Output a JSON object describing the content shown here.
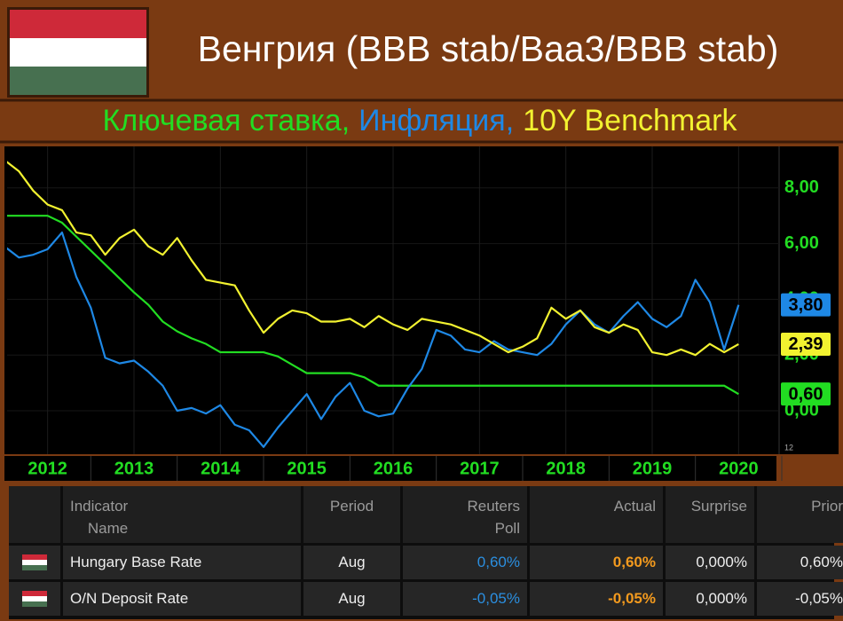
{
  "header": {
    "title": "Венгрия (BBB stab/Baa3/BBB stab)"
  },
  "chart_data": {
    "type": "line",
    "subtitle": [
      "Ключевая ставка,",
      "Инфляция,",
      "10Y Benchmark"
    ],
    "x": [
      2012,
      2012.167,
      2012.333,
      2012.5,
      2012.667,
      2012.833,
      2013,
      2013.167,
      2013.333,
      2013.5,
      2013.667,
      2013.833,
      2014,
      2014.167,
      2014.333,
      2014.5,
      2014.667,
      2014.833,
      2015,
      2015.167,
      2015.333,
      2015.5,
      2015.667,
      2015.833,
      2016,
      2016.167,
      2016.333,
      2016.5,
      2016.667,
      2016.833,
      2017,
      2017.167,
      2017.333,
      2017.5,
      2017.667,
      2017.833,
      2018,
      2018.167,
      2018.333,
      2018.5,
      2018.667,
      2018.833,
      2019,
      2019.167,
      2019.333,
      2019.5,
      2019.667,
      2019.833,
      2020,
      2020.167,
      2020.333,
      2020.5
    ],
    "xlim": [
      2012,
      2021
    ],
    "xticks": [
      {
        "value": 2012.5,
        "label": "2012"
      },
      {
        "value": 2013.5,
        "label": "2013"
      },
      {
        "value": 2014.5,
        "label": "2014"
      },
      {
        "value": 2015.5,
        "label": "2015"
      },
      {
        "value": 2016.5,
        "label": "2016"
      },
      {
        "value": 2017.5,
        "label": "2017"
      },
      {
        "value": 2018.5,
        "label": "2018"
      },
      {
        "value": 2019.5,
        "label": "2019"
      },
      {
        "value": 2020.5,
        "label": "2020"
      }
    ],
    "ylim": [
      -1.56,
      9.49
    ],
    "yticks": [
      {
        "value": 0,
        "label": "0,00"
      },
      {
        "value": 2,
        "label": "2,00"
      },
      {
        "value": 4,
        "label": "4,00"
      },
      {
        "value": 6,
        "label": "6,00"
      },
      {
        "value": 8,
        "label": "8,00"
      }
    ],
    "grid": true,
    "corner_note": "12",
    "series": [
      {
        "color": "#22dd22",
        "values": [
          7.0,
          7.0,
          7.0,
          7.0,
          6.75,
          6.25,
          5.75,
          5.25,
          4.75,
          4.25,
          3.8,
          3.2,
          2.85,
          2.6,
          2.4,
          2.1,
          2.1,
          2.1,
          2.1,
          1.95,
          1.65,
          1.35,
          1.35,
          1.35,
          1.35,
          1.2,
          0.9,
          0.9,
          0.9,
          0.9,
          0.9,
          0.9,
          0.9,
          0.9,
          0.9,
          0.9,
          0.9,
          0.9,
          0.9,
          0.9,
          0.9,
          0.9,
          0.9,
          0.9,
          0.9,
          0.9,
          0.9,
          0.9,
          0.9,
          0.9,
          0.9,
          0.6
        ],
        "value_labels": [
          null,
          null,
          null,
          null,
          null,
          null,
          null,
          null,
          null,
          null,
          null,
          null,
          null,
          null,
          null,
          null,
          null,
          null,
          null,
          null,
          null,
          null,
          null,
          null,
          null,
          null,
          null,
          null,
          null,
          null,
          null,
          null,
          null,
          null,
          null,
          null,
          null,
          null,
          null,
          null,
          null,
          null,
          null,
          null,
          null,
          null,
          null,
          null,
          null,
          null,
          null,
          "0,60"
        ]
      },
      {
        "color": "#1e88e5",
        "values": [
          5.9,
          5.5,
          5.6,
          5.8,
          6.4,
          4.8,
          3.7,
          1.9,
          1.7,
          1.8,
          1.4,
          0.9,
          0.0,
          0.1,
          -0.1,
          0.2,
          -0.5,
          -0.7,
          -1.3,
          -0.6,
          0.0,
          0.6,
          -0.3,
          0.5,
          1.0,
          0.0,
          -0.2,
          -0.1,
          0.8,
          1.5,
          2.9,
          2.7,
          2.2,
          2.1,
          2.5,
          2.2,
          2.1,
          2.0,
          2.4,
          3.1,
          3.6,
          3.1,
          2.8,
          3.4,
          3.9,
          3.3,
          3.0,
          3.4,
          4.7,
          3.9,
          2.2,
          3.8
        ],
        "value_labels": [
          null,
          null,
          null,
          null,
          null,
          null,
          null,
          null,
          null,
          null,
          null,
          null,
          null,
          null,
          null,
          null,
          null,
          null,
          null,
          null,
          null,
          null,
          null,
          null,
          null,
          null,
          null,
          null,
          null,
          null,
          null,
          null,
          null,
          null,
          null,
          null,
          null,
          null,
          null,
          null,
          null,
          null,
          null,
          null,
          null,
          null,
          null,
          null,
          null,
          null,
          null,
          "3,80"
        ]
      },
      {
        "color": "#f2f230",
        "values": [
          9.0,
          8.6,
          7.9,
          7.4,
          7.2,
          6.4,
          6.3,
          5.6,
          6.2,
          6.5,
          5.9,
          5.6,
          6.2,
          5.4,
          4.7,
          4.6,
          4.5,
          3.6,
          2.8,
          3.3,
          3.6,
          3.5,
          3.2,
          3.2,
          3.3,
          3.0,
          3.4,
          3.1,
          2.9,
          3.3,
          3.2,
          3.1,
          2.9,
          2.7,
          2.4,
          2.1,
          2.3,
          2.6,
          3.7,
          3.3,
          3.6,
          3.0,
          2.8,
          3.1,
          2.9,
          2.1,
          2.0,
          2.2,
          2.0,
          2.4,
          2.1,
          2.39
        ],
        "value_labels": [
          null,
          null,
          null,
          null,
          null,
          null,
          null,
          null,
          null,
          null,
          null,
          null,
          null,
          null,
          null,
          null,
          null,
          null,
          null,
          null,
          null,
          null,
          null,
          null,
          null,
          null,
          null,
          null,
          null,
          null,
          null,
          null,
          null,
          null,
          null,
          null,
          null,
          null,
          null,
          null,
          null,
          null,
          null,
          null,
          null,
          null,
          null,
          null,
          null,
          null,
          null,
          "2,39"
        ]
      }
    ]
  },
  "table": {
    "columns": [
      "Indicator Name",
      "Period",
      "Reuters Poll",
      "Actual",
      "Surprise",
      "Prior"
    ],
    "rows": [
      [
        "Hungary Base Rate",
        "Aug",
        "0,60%",
        "0,60%",
        "0,000%",
        "0,60%"
      ],
      [
        "O/N Deposit Rate",
        "Aug",
        "-0,05%",
        "-0,05%",
        "0,000%",
        "-0,05%"
      ]
    ]
  }
}
